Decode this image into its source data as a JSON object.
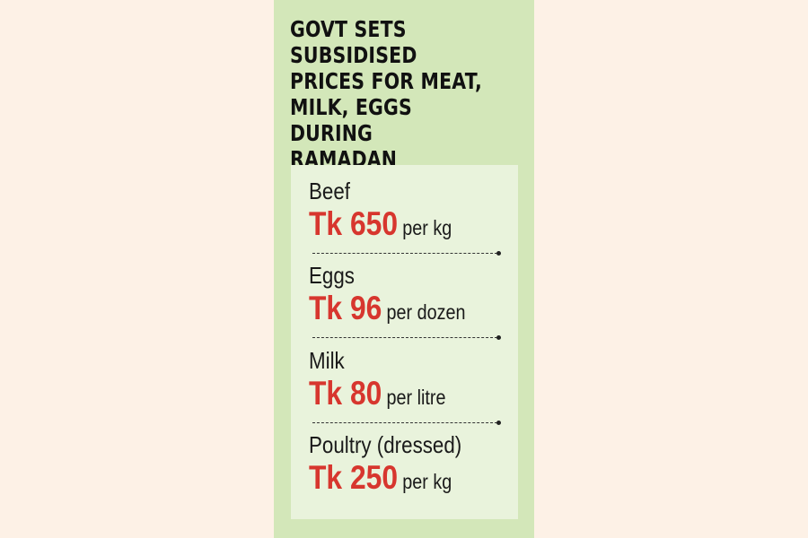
{
  "headline": "GOVT SETS SUBSIDISED PRICES FOR MEAT, MILK, EGGS DURING RAMADAN",
  "items": [
    {
      "name": "Beef",
      "price": "Tk 650",
      "unit": "per kg"
    },
    {
      "name": "Eggs",
      "price": "Tk 96",
      "unit": "per dozen"
    },
    {
      "name": "Milk",
      "price": "Tk 80",
      "unit": "per litre"
    },
    {
      "name": "Poultry (dressed)",
      "price": "Tk 250",
      "unit": "per kg"
    }
  ],
  "colors": {
    "page_background": "#fdf1e6",
    "card_background": "#d3e7b9",
    "panel_background": "#e9f3dc",
    "price_red": "#d7362e",
    "text_dark": "#111111"
  }
}
